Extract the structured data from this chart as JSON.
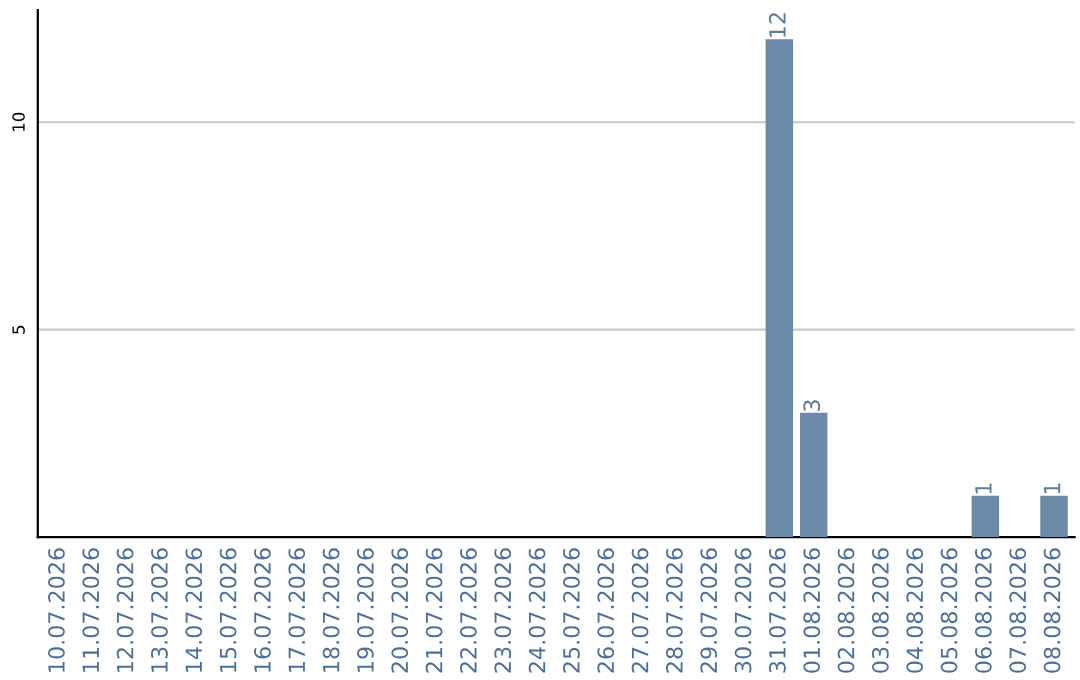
{
  "chart_data": {
    "type": "bar",
    "categories": [
      "10.07.2026",
      "11.07.2026",
      "12.07.2026",
      "13.07.2026",
      "14.07.2026",
      "15.07.2026",
      "16.07.2026",
      "17.07.2026",
      "18.07.2026",
      "19.07.2026",
      "20.07.2026",
      "21.07.2026",
      "22.07.2026",
      "23.07.2026",
      "24.07.2026",
      "25.07.2026",
      "26.07.2026",
      "27.07.2026",
      "28.07.2026",
      "29.07.2026",
      "30.07.2026",
      "31.07.2026",
      "01.08.2026",
      "02.08.2026",
      "03.08.2026",
      "04.08.2026",
      "05.08.2026",
      "06.08.2026",
      "07.08.2026",
      "08.08.2026"
    ],
    "values": [
      0,
      0,
      0,
      0,
      0,
      0,
      0,
      0,
      0,
      0,
      0,
      0,
      0,
      0,
      0,
      0,
      0,
      0,
      0,
      0,
      0,
      12,
      3,
      0,
      0,
      0,
      0,
      1,
      0,
      1
    ],
    "value_labels": [
      null,
      null,
      null,
      null,
      null,
      null,
      null,
      null,
      null,
      null,
      null,
      null,
      null,
      null,
      null,
      null,
      null,
      null,
      null,
      null,
      null,
      "12",
      "3",
      null,
      null,
      null,
      null,
      "1",
      null,
      "1"
    ],
    "color": "#6b8aa8",
    "ylim": [
      0,
      12.7
    ],
    "yticks": [
      5,
      10
    ],
    "grid": "y"
  }
}
